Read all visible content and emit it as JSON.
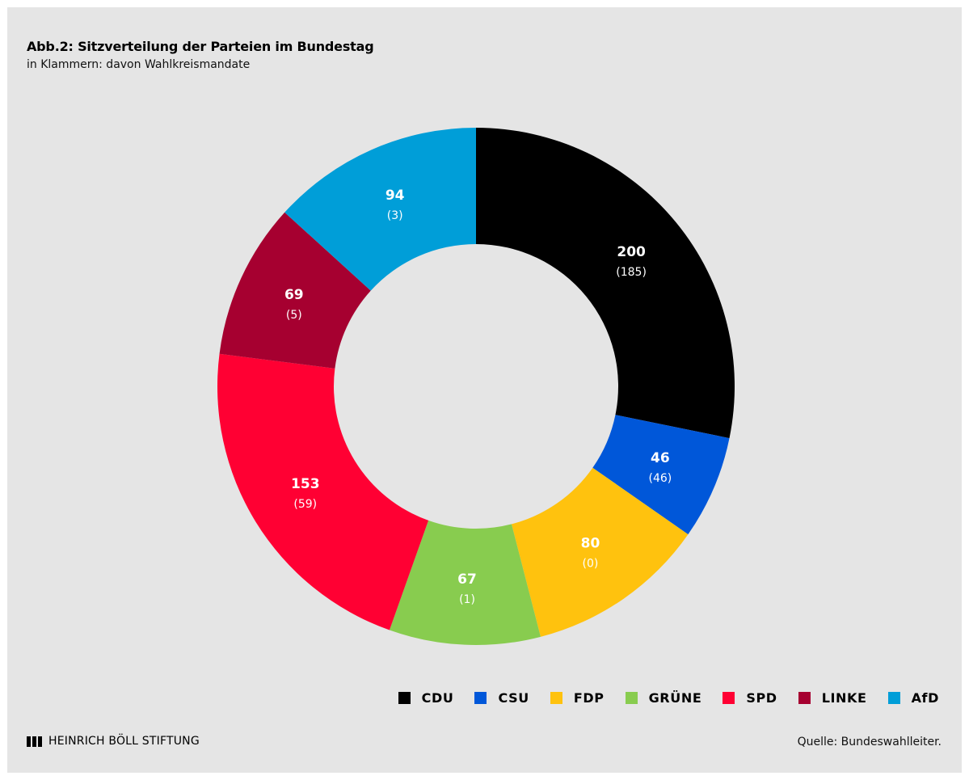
{
  "chart_data": {
    "type": "pie",
    "title": "Abb.2: Sitzverteilung der Parteien im Bundestag",
    "subtitle": "in Klammern: davon Wahlkreismandate",
    "categories": [
      "CDU",
      "CSU",
      "FDP",
      "GRÜNE",
      "SPD",
      "LINKE",
      "AfD"
    ],
    "values": [
      200,
      46,
      80,
      67,
      153,
      69,
      94
    ],
    "constituency_seats": [
      185,
      46,
      0,
      1,
      59,
      5,
      3
    ],
    "value_labels": [
      "200",
      "46",
      "80",
      "67",
      "153",
      "69",
      "94"
    ],
    "sub_labels": [
      "(185)",
      "(46)",
      "(0)",
      "(1)",
      "(59)",
      "(5)",
      "(3)"
    ],
    "colors": [
      "#000000",
      "#0057d9",
      "#ffc20e",
      "#88cc4f",
      "#ff0033",
      "#a60030",
      "#009ed8"
    ],
    "legend_position": "bottom-right",
    "style": "donut"
  },
  "legend": {
    "items": [
      {
        "label": "CDU",
        "color": "#000000"
      },
      {
        "label": "CSU",
        "color": "#0057d9"
      },
      {
        "label": "FDP",
        "color": "#ffc20e"
      },
      {
        "label": "GRÜNE",
        "color": "#88cc4f"
      },
      {
        "label": "SPD",
        "color": "#ff0033"
      },
      {
        "label": "LINKE",
        "color": "#a60030"
      },
      {
        "label": "AfD",
        "color": "#009ed8"
      }
    ]
  },
  "footer": {
    "logo_text": "HEINRICH BÖLL STIFTUNG",
    "source": "Quelle: Bundeswahlleiter."
  },
  "colors": {
    "background": "#e5e5e5",
    "text": "#000000"
  }
}
